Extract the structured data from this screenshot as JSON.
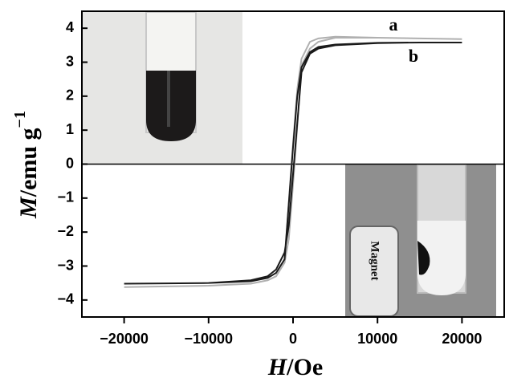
{
  "chart_data": {
    "type": "line",
    "xlabel": {
      "symbol": "H",
      "unit": "/Oe"
    },
    "ylabel": {
      "symbol": "M",
      "unit": "/emu g",
      "exponent": "−1"
    },
    "xlim": [
      -25000,
      25000
    ],
    "ylim": [
      -4.5,
      4.5
    ],
    "xticks": [
      {
        "value": -20000,
        "label": "−20000"
      },
      {
        "value": -10000,
        "label": "−10000"
      },
      0,
      10000,
      20000
    ],
    "yticks": [
      {
        "value": -4,
        "label": "−4"
      },
      {
        "value": -3,
        "label": "−3"
      },
      {
        "value": -2,
        "label": "−2"
      },
      {
        "value": -1,
        "label": "−1"
      },
      0,
      1,
      2,
      3,
      4
    ],
    "series": [
      {
        "name": "a",
        "color": "#b0b0b0",
        "x": [
          20000,
          15000,
          10000,
          5000,
          3000,
          2000,
          1000,
          500,
          0,
          -300,
          -1000,
          -2000,
          -3000,
          -5000,
          -10000,
          -15000,
          -20000,
          -15000,
          -10000,
          -5000,
          -3000,
          -2000,
          -1000,
          -500,
          0,
          300,
          1000,
          2000,
          3000,
          5000,
          10000,
          15000,
          20000
        ],
        "values": [
          3.68,
          3.7,
          3.72,
          3.75,
          3.7,
          3.6,
          3.1,
          2.2,
          0.6,
          -0.4,
          -2.9,
          -3.3,
          -3.42,
          -3.52,
          -3.58,
          -3.6,
          -3.62,
          -3.6,
          -3.58,
          -3.52,
          -3.42,
          -3.3,
          -2.9,
          -2.2,
          -0.6,
          0.4,
          2.9,
          3.4,
          3.6,
          3.72,
          3.72,
          3.7,
          3.68
        ]
      },
      {
        "name": "b",
        "color": "#1a1a1a",
        "x": [
          20000,
          15000,
          10000,
          5000,
          3000,
          2000,
          1000,
          500,
          0,
          -300,
          -1000,
          -2000,
          -3000,
          -5000,
          -10000,
          -15000,
          -20000,
          -15000,
          -10000,
          -5000,
          -3000,
          -2000,
          -1000,
          -500,
          0,
          300,
          1000,
          2000,
          3000,
          5000,
          10000,
          15000,
          20000
        ],
        "values": [
          3.58,
          3.58,
          3.57,
          3.52,
          3.45,
          3.3,
          2.85,
          2.0,
          0.5,
          -0.5,
          -2.8,
          -3.2,
          -3.35,
          -3.45,
          -3.5,
          -3.51,
          -3.52,
          -3.51,
          -3.5,
          -3.42,
          -3.3,
          -3.1,
          -2.6,
          -1.8,
          -0.3,
          0.6,
          2.7,
          3.25,
          3.4,
          3.5,
          3.56,
          3.58,
          3.58
        ]
      }
    ],
    "inset_label": "Magnet"
  }
}
